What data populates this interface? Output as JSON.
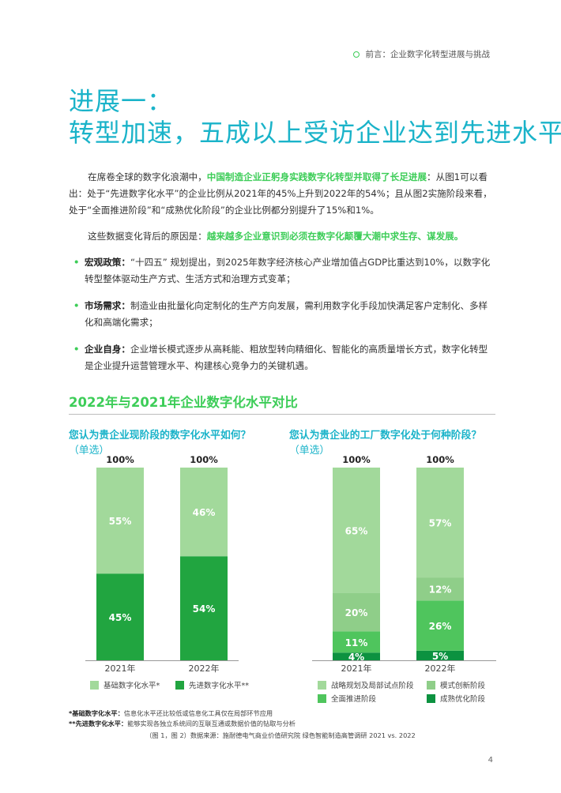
{
  "header": {
    "breadcrumb": "前言：企业数字化转型进展与挑战"
  },
  "title": {
    "line1": "进展一：",
    "line2": "转型加速，五成以上受访企业达到先进水平"
  },
  "paragraphs": {
    "p1": {
      "before": "在席卷全球的数字化浪潮中，",
      "highlight": "中国制造企业正躬身实践数字化转型并取得了长足进展",
      "after": "：从图1可以看出：处于“先进数字化水平”的企业比例从2021年的45%上升到2022年的54%；且从图2实施阶段来看，处于“全面推进阶段”和“成熟优化阶段”的企业比例都分别提升了15%和1%。"
    },
    "p2": {
      "before": "这些数据变化背后的原因是：",
      "highlight": "越来越多企业意识到必须在数字化颠覆大潮中求生存、谋发展。"
    }
  },
  "bullets": [
    {
      "label": "宏观政策：",
      "text": "“十四五” 规划提出，到2025年数字经济核心产业增加值占GDP比重达到10%，以数字化转型整体驱动生产方式、生活方式和治理方式变革；"
    },
    {
      "label": "市场需求：",
      "text": "制造业由批量化向定制化的生产方向发展，需利用数字化手段加快满足客户定制化、多样化和高端化需求；"
    },
    {
      "label": "企业自身：",
      "text": "企业增长模式逐步从高耗能、粗放型转向精细化、智能化的高质量增长方式，数字化转型是企业提升运营管理水平、构建核心竞争力的关键机遇。"
    }
  ],
  "section": {
    "title": "2022年与2021年企业数字化水平对比"
  },
  "questions": {
    "q1": "您认为贵企业现阶段的数字化水平如何？",
    "q1_sub": "（单选）",
    "q2": "您认为贵企业的工厂数字化处于何种阶段？",
    "q2_sub": "（单选）"
  },
  "colors": {
    "light_green": "#a2d99b",
    "mid_green": "#4fc55d",
    "dark_green": "#21a540",
    "darkest_green": "#0c9240",
    "accent_green": "#3dcd58",
    "accent_teal": "#1ab3c9"
  },
  "chart_data": [
    {
      "type": "bar",
      "stacked": true,
      "categories": [
        "2021年",
        "2022年"
      ],
      "totals": [
        "100%",
        "100%"
      ],
      "series": [
        {
          "name": "先进数字化水平**",
          "values": [
            45,
            54
          ],
          "color": "#21a540"
        },
        {
          "name": "基础数字化水平*",
          "values": [
            55,
            46
          ],
          "color": "#a2d99b"
        }
      ],
      "ylim": [
        0,
        100
      ]
    },
    {
      "type": "bar",
      "stacked": true,
      "categories": [
        "2021年",
        "2022年"
      ],
      "totals": [
        "100%",
        "100%"
      ],
      "series": [
        {
          "name": "成熟优化阶段",
          "values": [
            4,
            5
          ],
          "color": "#0c9240"
        },
        {
          "name": "全面推进阶段",
          "values": [
            11,
            26
          ],
          "color": "#4fc55d"
        },
        {
          "name": "模式创新阶段",
          "values": [
            20,
            12
          ],
          "color": "#8fce89"
        },
        {
          "name": "战略规划及局部试点阶段",
          "values": [
            65,
            57
          ],
          "color": "#a2d99b"
        }
      ],
      "ylim": [
        0,
        100
      ]
    }
  ],
  "legends": {
    "chart1": [
      {
        "label": "基础数字化水平*",
        "color": "#a2d99b"
      },
      {
        "label": "先进数字化水平**",
        "color": "#21a540"
      }
    ],
    "chart2": [
      {
        "label": "战略规划及局部试点阶段",
        "color": "#a2d99b"
      },
      {
        "label": "模式创新阶段",
        "color": "#8fce89"
      },
      {
        "label": "全面推进阶段",
        "color": "#4fc55d"
      },
      {
        "label": "成熟优化阶段",
        "color": "#0c9240"
      }
    ]
  },
  "footnotes": {
    "fn1_label": "*基础数字化水平：",
    "fn1_text": "信息化水平还比较低或信息化工具仅在局部环节应用",
    "fn2_label": "**先进数字化水平：",
    "fn2_text": "能够实现各独立系统间的互联互通或数据价值的钻取与分析",
    "source": "（图 1，图 2）数据来源：施耐德电气商业价值研究院 绿色智能制造高管调研 2021 vs. 2022"
  },
  "page_number": "4"
}
